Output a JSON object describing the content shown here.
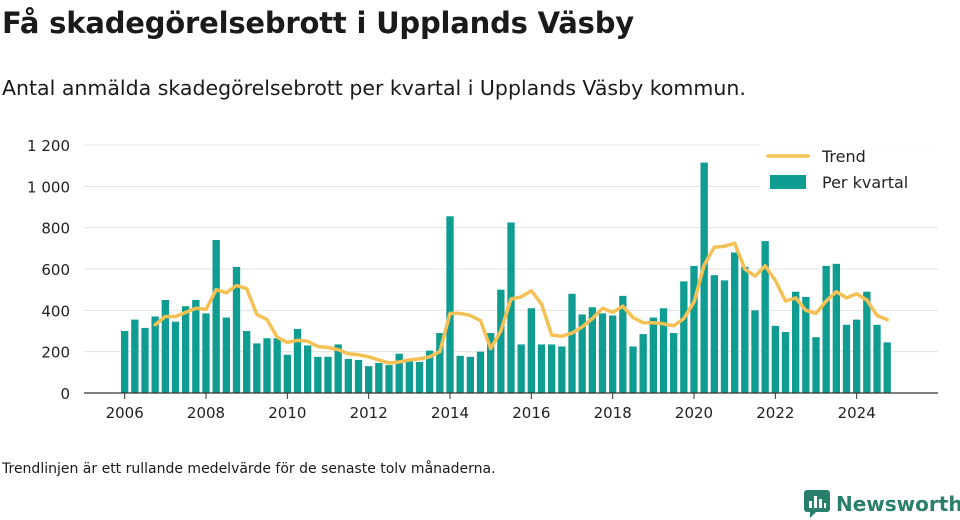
{
  "header": {
    "title": "Få skadegörelsebrott i Upplands Väsby",
    "subtitle": "Antal anmälda skadegörelsebrott per kvartal i Upplands Väsby kommun."
  },
  "footnote": "Trendlinjen är ett rullande medelvärde för de senaste tolv månaderna.",
  "brand": {
    "name": "Newsworthy",
    "color": "#2a7f6c",
    "icon": "bar-chart-speech-bubble-icon"
  },
  "colors": {
    "bar": "#0f9c91",
    "trend": "#f5c154",
    "grid": "#e3e3e3",
    "axis": "#333333"
  },
  "chart_data": {
    "type": "bar",
    "x_start": 2006.0,
    "x_step": 0.25,
    "xlim": [
      2005.0,
      2026.0
    ],
    "ylim": [
      0,
      1200
    ],
    "x_ticks": [
      2006,
      2008,
      2010,
      2012,
      2014,
      2016,
      2018,
      2020,
      2022,
      2024
    ],
    "y_ticks": [
      0,
      200,
      400,
      600,
      800,
      1000,
      1200
    ],
    "y_tick_labels": [
      "0",
      "200",
      "400",
      "600",
      "800",
      "1 000",
      "1 200"
    ],
    "grid": "horizontal",
    "legend_position": "top-right",
    "legend": [
      "Trend",
      "Per kvartal"
    ],
    "series": [
      {
        "name": "Per kvartal",
        "type": "bar",
        "values": [
          300,
          355,
          315,
          370,
          450,
          345,
          420,
          450,
          385,
          740,
          365,
          610,
          300,
          240,
          265,
          265,
          185,
          310,
          230,
          175,
          175,
          235,
          165,
          160,
          130,
          145,
          135,
          190,
          155,
          150,
          205,
          290,
          855,
          180,
          175,
          200,
          290,
          500,
          825,
          235,
          410,
          235,
          235,
          225,
          480,
          380,
          415,
          385,
          375,
          470,
          225,
          285,
          365,
          410,
          290,
          540,
          615,
          1115,
          570,
          545,
          680,
          610,
          400,
          735,
          325,
          295,
          490,
          465,
          270,
          615,
          625,
          330,
          355,
          490,
          330,
          245
        ]
      },
      {
        "name": "Trend",
        "type": "line",
        "values": [
          null,
          null,
          null,
          330,
          370,
          370,
          390,
          410,
          405,
          500,
          485,
          520,
          505,
          380,
          355,
          270,
          245,
          255,
          250,
          225,
          220,
          210,
          190,
          185,
          175,
          160,
          145,
          150,
          160,
          165,
          175,
          200,
          385,
          385,
          375,
          350,
          215,
          300,
          455,
          465,
          495,
          430,
          280,
          275,
          290,
          320,
          360,
          410,
          390,
          420,
          365,
          340,
          340,
          335,
          325,
          360,
          440,
          620,
          705,
          710,
          725,
          600,
          565,
          615,
          545,
          445,
          460,
          400,
          385,
          445,
          490,
          460,
          480,
          450,
          375,
          355
        ]
      }
    ]
  }
}
